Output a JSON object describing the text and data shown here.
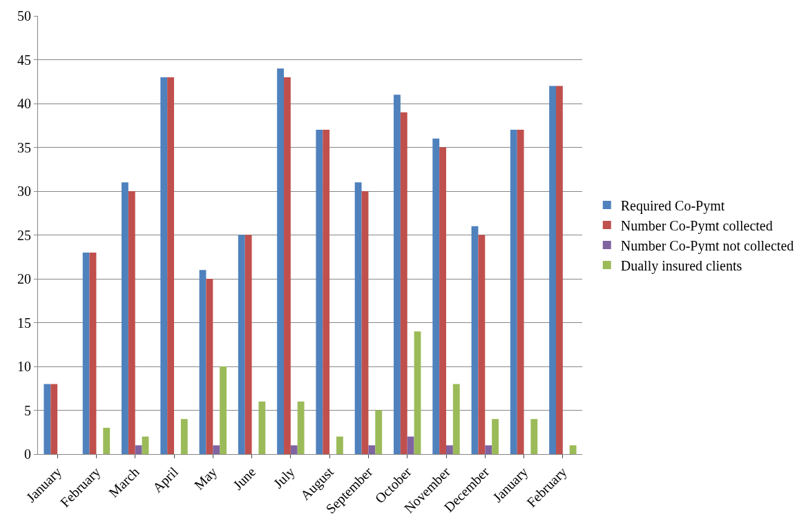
{
  "chart_data": {
    "type": "bar",
    "categories": [
      "January",
      "February",
      "March",
      "April",
      "May",
      "June",
      "July",
      "August",
      "September",
      "October",
      "November",
      "December",
      "January",
      "February"
    ],
    "series": [
      {
        "name": "Required Co-Pymt",
        "color": "#4f81bd",
        "values": [
          8,
          23,
          31,
          43,
          21,
          25,
          44,
          37,
          31,
          41,
          36,
          26,
          37,
          42
        ]
      },
      {
        "name": "Number Co-Pymt collected",
        "color": "#c0504d",
        "values": [
          8,
          23,
          30,
          43,
          20,
          25,
          43,
          37,
          30,
          39,
          35,
          25,
          37,
          42
        ]
      },
      {
        "name": "Number Co-Pymt not collected",
        "color": "#8064a2",
        "values": [
          0,
          0,
          1,
          0,
          1,
          0,
          1,
          0,
          1,
          2,
          1,
          1,
          0,
          0
        ]
      },
      {
        "name": "Dually insured clients",
        "color": "#9bbb59",
        "values": [
          0,
          3,
          2,
          4,
          10,
          6,
          6,
          2,
          5,
          14,
          8,
          4,
          4,
          1
        ]
      }
    ],
    "ylim": [
      0,
      50
    ],
    "yticks": [
      0,
      5,
      10,
      15,
      20,
      25,
      30,
      35,
      40,
      45,
      50
    ],
    "grid": "y",
    "legend": "right"
  }
}
